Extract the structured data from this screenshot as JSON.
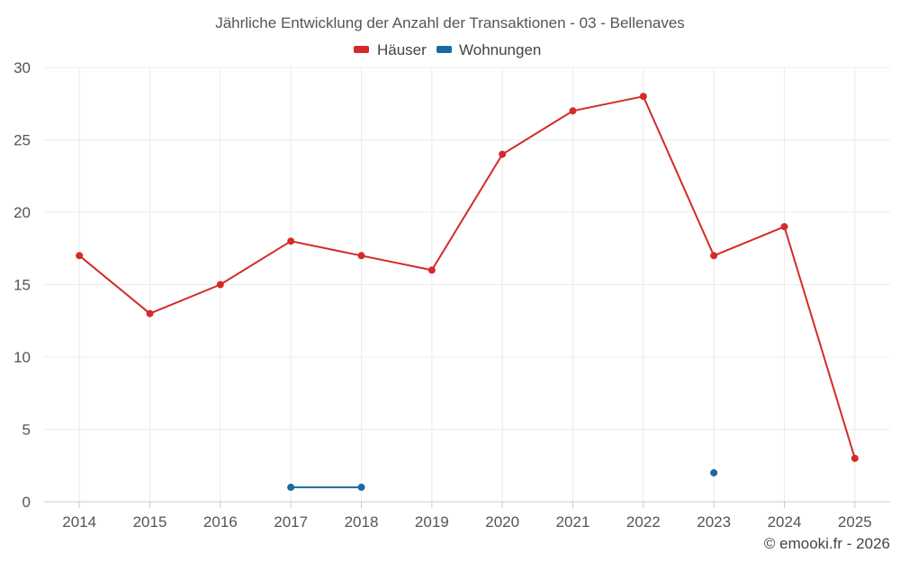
{
  "chart_data": {
    "type": "line",
    "title": "Jährliche Entwicklung der Anzahl der Transaktionen - 03 - Bellenaves",
    "xlabel": "",
    "ylabel": "",
    "x": [
      "2014",
      "2015",
      "2016",
      "2017",
      "2018",
      "2019",
      "2020",
      "2021",
      "2022",
      "2023",
      "2024",
      "2025"
    ],
    "ylim": [
      0,
      30
    ],
    "yticks": [
      "0",
      "5",
      "10",
      "15",
      "20",
      "25",
      "30"
    ],
    "grid": true,
    "legend_position": "top-center",
    "series": [
      {
        "name": "Häuser",
        "color": "#d42a2a",
        "values": [
          17,
          13,
          15,
          18,
          17,
          16,
          24,
          27,
          28,
          17,
          19,
          3
        ]
      },
      {
        "name": "Wohnungen",
        "color": "#1a6aa0",
        "values": [
          null,
          null,
          null,
          1,
          1,
          null,
          null,
          null,
          null,
          2,
          null,
          null
        ]
      }
    ]
  },
  "credit": "© emooki.fr - 2026"
}
